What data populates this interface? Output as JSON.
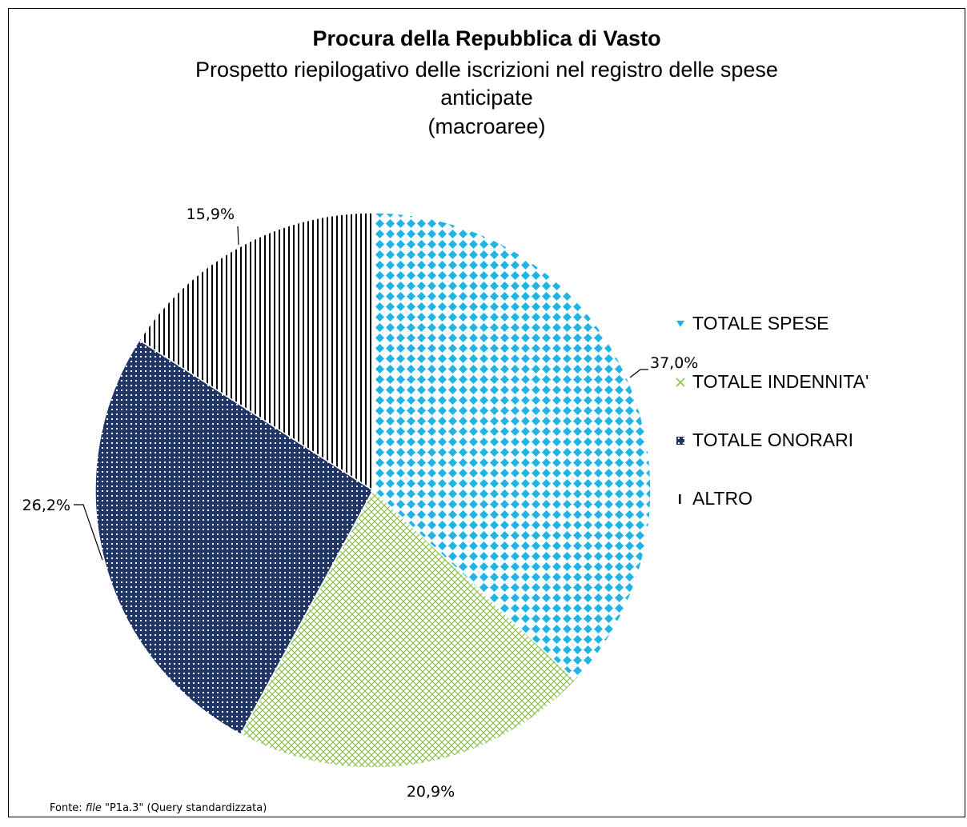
{
  "chart_data": {
    "type": "pie",
    "title": "Procura della Repubblica di Vasto",
    "subtitle_lines": [
      "Prospetto riepilogativo delle iscrizioni nel registro delle spese",
      "anticipate",
      "(macroaree)"
    ],
    "slices": [
      {
        "name": "TOTALE SPESE",
        "value": 37.0,
        "label": "37,0%",
        "color": "#1fb3e6",
        "pattern": "diamond-dots"
      },
      {
        "name": "TOTALE INDENNITA'",
        "value": 20.9,
        "label": "20,9%",
        "color": "#92c353",
        "pattern": "light-crosshatch"
      },
      {
        "name": "TOTALE ONORARI",
        "value": 26.2,
        "label": "26,2%",
        "color": "#1f3567",
        "pattern": "dark-grid"
      },
      {
        "name": "ALTRO",
        "value": 15.9,
        "label": "15,9%",
        "color": "#000000",
        "pattern": "vertical-lines"
      }
    ],
    "start_angle": "12 o'clock",
    "direction": "clockwise",
    "legend_position": "right"
  },
  "source": {
    "prefix": "Fonte: ",
    "file_word": "file",
    "rest": " \"P1a.3\" (Query standardizzata)"
  }
}
